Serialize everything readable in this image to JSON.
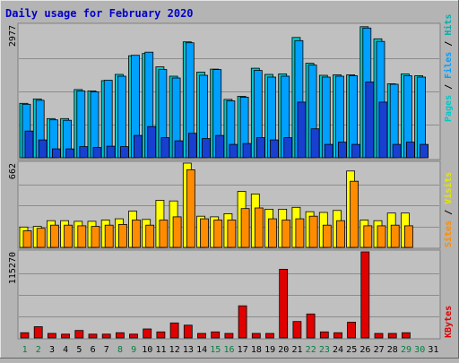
{
  "chart_data": [
    {
      "type": "bar",
      "title": "Daily usage for February 2020",
      "max_label": "2977",
      "legend": [
        "Pages",
        "Files",
        "Hits"
      ],
      "series": [
        {
          "name": "Hits",
          "color": "#00c8c8",
          "values": [
            1220,
            1320,
            880,
            880,
            1530,
            1500,
            1730,
            1870,
            2290,
            2340,
            2040,
            1830,
            2600,
            1920,
            1990,
            1310,
            1380,
            2010,
            1870,
            1880,
            2700,
            2120,
            1850,
            1860,
            1860,
            2940,
            2670,
            1660,
            1880,
            1840,
            0
          ]
        },
        {
          "name": "Files",
          "color": "#00a0ff",
          "values": [
            1200,
            1290,
            850,
            840,
            1500,
            1480,
            1740,
            1830,
            2300,
            2370,
            1980,
            1790,
            2580,
            1850,
            1980,
            1280,
            1360,
            1960,
            1810,
            1830,
            2630,
            2080,
            1810,
            1830,
            1840,
            2910,
            2610,
            1650,
            1840,
            1810,
            0
          ]
        },
        {
          "name": "Pages",
          "color": "#1840d0",
          "values": [
            600,
            400,
            200,
            200,
            250,
            230,
            260,
            250,
            500,
            700,
            450,
            380,
            550,
            430,
            500,
            300,
            320,
            450,
            400,
            450,
            1250,
            650,
            300,
            350,
            300,
            1700,
            1250,
            300,
            350,
            300,
            0
          ]
        }
      ],
      "days": [
        "1",
        "2",
        "3",
        "4",
        "5",
        "6",
        "7",
        "8",
        "9",
        "10",
        "11",
        "12",
        "13",
        "14",
        "15",
        "16",
        "17",
        "18",
        "19",
        "20",
        "21",
        "22",
        "23",
        "24",
        "25",
        "26",
        "27",
        "28",
        "29",
        "30",
        "31"
      ]
    },
    {
      "type": "bar",
      "max_label": "662",
      "legend": [
        "Sites",
        "Visits"
      ],
      "series": [
        {
          "name": "Visits",
          "color": "#ffff00",
          "values": [
            160,
            165,
            210,
            210,
            205,
            205,
            215,
            225,
            285,
            220,
            370,
            365,
            662,
            245,
            240,
            265,
            440,
            420,
            300,
            300,
            315,
            280,
            275,
            290,
            600,
            215,
            210,
            270,
            270,
            0,
            0
          ]
        },
        {
          "name": "Sites",
          "color": "#ff8c00",
          "values": [
            130,
            150,
            175,
            175,
            170,
            165,
            175,
            180,
            215,
            175,
            215,
            240,
            610,
            225,
            215,
            215,
            305,
            310,
            225,
            215,
            225,
            245,
            175,
            210,
            520,
            170,
            170,
            175,
            170,
            0,
            0
          ]
        }
      ]
    },
    {
      "type": "bar",
      "max_label": "115270",
      "legend": [
        "KBytes"
      ],
      "series": [
        {
          "name": "KBytes",
          "color": "#e00000",
          "values": [
            7000,
            15000,
            6000,
            5000,
            10000,
            5000,
            5000,
            7000,
            5000,
            12000,
            8000,
            20000,
            17000,
            6000,
            8000,
            6000,
            43000,
            6000,
            6000,
            92000,
            22000,
            32000,
            8000,
            7000,
            21000,
            115270,
            6000,
            6000,
            7000,
            0,
            0
          ]
        }
      ]
    }
  ],
  "weekend_days": [
    1,
    2,
    8,
    9,
    15,
    16,
    22,
    23,
    29,
    30
  ],
  "colors": {
    "background": "#b4b4b4",
    "panel": "#c0c0c0",
    "title": "#0000c8",
    "weekday_label": "#000000",
    "weekend_label": "#008040",
    "grid": "#8c8c8c"
  }
}
